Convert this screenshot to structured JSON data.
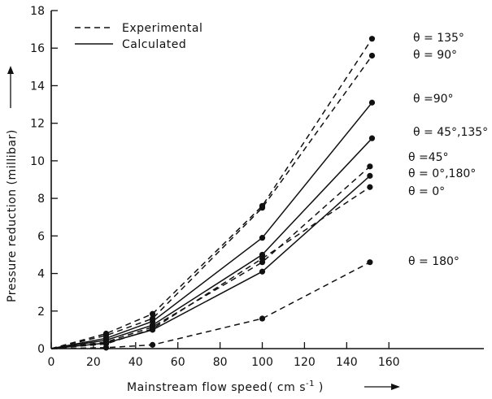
{
  "chart_data": {
    "type": "line",
    "xlabel": "Mainstream flow speed",
    "xlabel_unit_prefix": "( cm s",
    "xlabel_unit_sup": "-1",
    "xlabel_unit_suffix": " )",
    "ylabel": "Pressure reduction (millibar)",
    "xlim": [
      0,
      205
    ],
    "ylim": [
      0,
      18
    ],
    "x_ticks": [
      0,
      20,
      40,
      60,
      80,
      100,
      120,
      140,
      160
    ],
    "y_ticks": [
      0,
      2,
      4,
      6,
      8,
      10,
      12,
      14,
      16,
      18
    ],
    "grid": false,
    "legend_position": "top-left",
    "legend": [
      {
        "label": "Experimental",
        "style": "dashed"
      },
      {
        "label": "Calculated",
        "style": "solid"
      }
    ],
    "series": [
      {
        "label": "θ = 135°",
        "style": "dashed",
        "x": [
          0,
          26,
          48,
          100,
          152
        ],
        "y": [
          0,
          0.8,
          1.85,
          7.6,
          16.5
        ]
      },
      {
        "label": "θ = 90°",
        "style": "dashed",
        "x": [
          0,
          26,
          48,
          100,
          152
        ],
        "y": [
          0,
          0.7,
          1.6,
          7.5,
          15.6
        ]
      },
      {
        "label": "θ = 90°",
        "style": "solid",
        "x": [
          0,
          26,
          48,
          100,
          152
        ],
        "y": [
          0,
          0.55,
          1.45,
          5.9,
          13.1
        ]
      },
      {
        "label": "θ = 45°,135°",
        "style": "solid",
        "x": [
          0,
          26,
          48,
          100,
          152
        ],
        "y": [
          0,
          0.45,
          1.25,
          5.0,
          11.2
        ]
      },
      {
        "label": "θ = 45°",
        "style": "dashed",
        "x": [
          0,
          26,
          48,
          100,
          151
        ],
        "y": [
          0,
          0.35,
          1.15,
          4.6,
          9.7
        ]
      },
      {
        "label": "θ = 0°,180°",
        "style": "solid",
        "x": [
          0,
          26,
          48,
          100,
          151
        ],
        "y": [
          0,
          0.3,
          1.0,
          4.1,
          9.2
        ]
      },
      {
        "label": "θ = 0°",
        "style": "dashed",
        "x": [
          0,
          26,
          48,
          100,
          151
        ],
        "y": [
          0,
          0.25,
          1.05,
          4.8,
          8.6
        ]
      },
      {
        "label": "θ = 180°",
        "style": "dashed",
        "x": [
          0,
          26,
          48,
          100,
          151
        ],
        "y": [
          0,
          0.05,
          0.2,
          1.6,
          4.6
        ]
      }
    ],
    "annotations": [
      "θ = 135°",
      "θ = 90°",
      "θ =90°",
      "θ = 45°,135°",
      "θ =45°",
      "θ = 0°,180°",
      "θ = 0°",
      "θ = 180°"
    ]
  }
}
